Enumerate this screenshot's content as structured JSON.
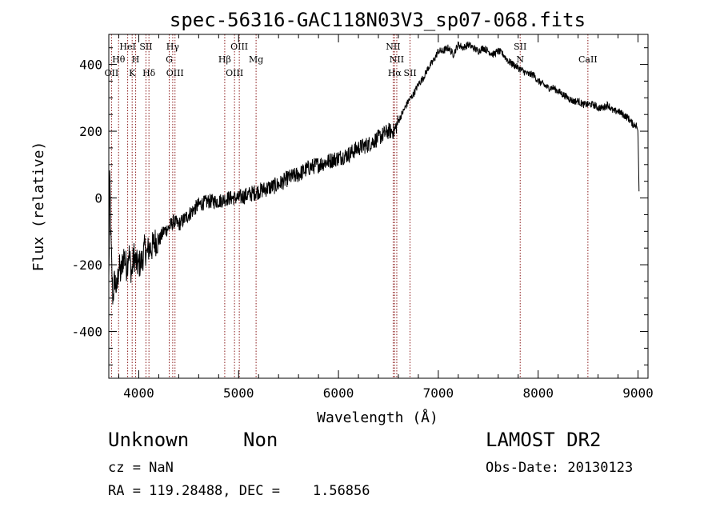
{
  "chart_data": {
    "type": "line",
    "title": "spec-56316-GAC118N03V3_sp07-068.fits",
    "xlabel": "Wavelength (Å)",
    "ylabel": "Flux (relative)",
    "xlim": [
      3700,
      9100
    ],
    "ylim": [
      -540,
      490
    ],
    "xticks": [
      4000,
      5000,
      6000,
      7000,
      8000,
      9000
    ],
    "yticks": [
      -400,
      -200,
      0,
      200,
      400
    ],
    "grid": false,
    "series": [
      {
        "x": [
          3700,
          3710,
          3720,
          3740,
          3760,
          3780,
          3800,
          3820,
          3850,
          3880,
          3900,
          3930,
          3950,
          3980,
          4000,
          4030,
          4060,
          4080,
          4100,
          4130,
          4160,
          4200,
          4250,
          4300,
          4350,
          4400,
          4500,
          4600,
          4700,
          4800,
          4900,
          5000,
          5100,
          5200,
          5300,
          5400,
          5500,
          5600,
          5700,
          5800,
          5900,
          6000,
          6100,
          6200,
          6300,
          6400,
          6500,
          6560,
          6600,
          6650,
          6700,
          6750,
          6800,
          6850,
          6900,
          6950,
          7000,
          7050,
          7100,
          7150,
          7200,
          7250,
          7300,
          7350,
          7400,
          7450,
          7500,
          7550,
          7600,
          7650,
          7700,
          7750,
          7800,
          7850,
          7900,
          7950,
          8000,
          8050,
          8100,
          8150,
          8200,
          8250,
          8300,
          8350,
          8400,
          8450,
          8500,
          8550,
          8600,
          8650,
          8700,
          8750,
          8800,
          8850,
          8900,
          8950,
          8980,
          9000,
          9010
        ],
        "y": [
          -250,
          70,
          -120,
          -300,
          -240,
          -280,
          -200,
          -230,
          -170,
          -210,
          -160,
          -230,
          -170,
          -200,
          -200,
          -190,
          -150,
          -170,
          -150,
          -150,
          -130,
          -130,
          -100,
          -90,
          -70,
          -80,
          -50,
          -20,
          -10,
          -10,
          0,
          0,
          10,
          20,
          30,
          40,
          60,
          70,
          90,
          100,
          110,
          120,
          130,
          150,
          160,
          180,
          200,
          200,
          230,
          260,
          290,
          310,
          340,
          360,
          390,
          410,
          440,
          440,
          450,
          430,
          460,
          450,
          460,
          450,
          440,
          450,
          440,
          430,
          440,
          430,
          410,
          400,
          390,
          380,
          370,
          370,
          350,
          340,
          330,
          330,
          320,
          310,
          300,
          290,
          290,
          280,
          280,
          280,
          270,
          270,
          280,
          260,
          260,
          250,
          240,
          220,
          220,
          200,
          20
        ]
      }
    ],
    "lines": [
      {
        "wl": 3727,
        "labels": [
          {
            "text": "OII",
            "row": 3
          }
        ]
      },
      {
        "wl": 3798,
        "labels": [
          {
            "text": "Hθ",
            "row": 2
          }
        ]
      },
      {
        "wl": 3889,
        "labels": [
          {
            "text": "HeI",
            "row": 1
          }
        ]
      },
      {
        "wl": 3934,
        "labels": [
          {
            "text": "K",
            "row": 3
          }
        ]
      },
      {
        "wl": 3969,
        "labels": [
          {
            "text": "H",
            "row": 2
          }
        ]
      },
      {
        "wl": 4072,
        "labels": [
          {
            "text": "SII",
            "row": 1
          }
        ]
      },
      {
        "wl": 4102,
        "labels": [
          {
            "text": "Hδ",
            "row": 3
          }
        ]
      },
      {
        "wl": 4305,
        "labels": [
          {
            "text": "G",
            "row": 2
          }
        ]
      },
      {
        "wl": 4340,
        "labels": [
          {
            "text": "Hγ",
            "row": 1
          }
        ]
      },
      {
        "wl": 4363,
        "labels": [
          {
            "text": "OIII",
            "row": 3
          }
        ]
      },
      {
        "wl": 4861,
        "labels": [
          {
            "text": "Hβ",
            "row": 2
          }
        ]
      },
      {
        "wl": 4959,
        "labels": [
          {
            "text": "OIII",
            "row": 3
          }
        ]
      },
      {
        "wl": 5007,
        "labels": [
          {
            "text": "OIII",
            "row": 1
          }
        ]
      },
      {
        "wl": 5175,
        "labels": [
          {
            "text": "Mg",
            "row": 2
          }
        ]
      },
      {
        "wl": 6548,
        "labels": [
          {
            "text": "NII",
            "row": 1
          }
        ]
      },
      {
        "wl": 6563,
        "labels": [
          {
            "text": "Hα",
            "row": 3
          }
        ]
      },
      {
        "wl": 6584,
        "labels": [
          {
            "text": "NII",
            "row": 2
          }
        ]
      },
      {
        "wl": 6717,
        "labels": [
          {
            "text": "SII",
            "row": 3
          }
        ]
      },
      {
        "wl": 7820,
        "labels": [
          {
            "text": "SII",
            "row": 1
          },
          {
            "text": "N",
            "row": 2
          }
        ]
      },
      {
        "wl": 8498,
        "labels": [
          {
            "text": "CaII",
            "row": 2
          }
        ]
      }
    ],
    "line_color": "#8b1a1a"
  },
  "footer": {
    "object_class": "Unknown",
    "object_subclass": "Non",
    "survey": "LAMOST DR2",
    "cz": "cz = NaN",
    "obs_date": "Obs-Date: 20130123",
    "radec": "RA = 119.28488, DEC =    1.56856"
  }
}
